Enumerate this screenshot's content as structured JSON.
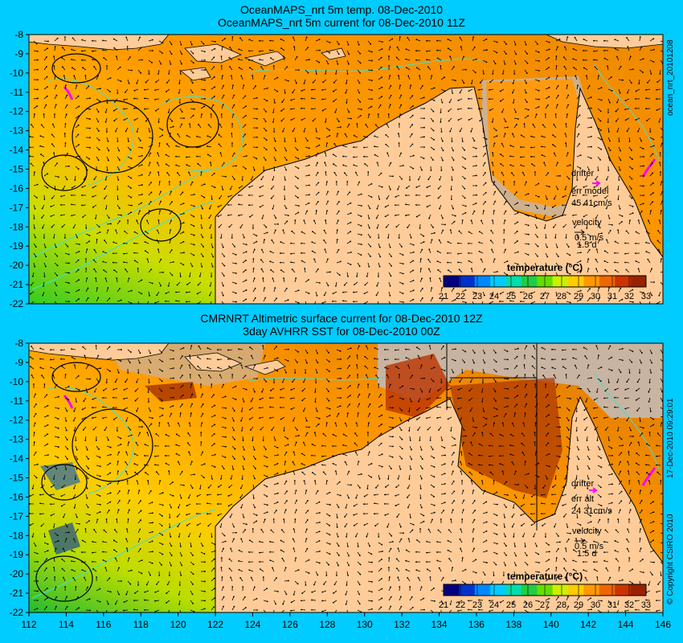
{
  "top_panel": {
    "title_line1": "OceanMAPS_nrt 5m temp. 08-Dec-2010",
    "title_line2": "OceanMAPS_nrt 5m current for 08-Dec-2010 11Z",
    "side_label": "ocean_nrt_20101208",
    "legend": {
      "drifter": "drifter",
      "err": "err model",
      "err_values": "45 41cm/s",
      "velocity": "velocity",
      "speed": "0.5 m/s",
      "duration": "1.5 d"
    },
    "colorbar_title": "temperature (°C)"
  },
  "bottom_panel": {
    "title_line1": "CMRNRT Altimetric surface current for 08-Dec-2010 12Z",
    "title_line2": "3day AVHRR SST for 08-Dec-2010 00Z",
    "side_label": "17-Dec-2010 09:29:01",
    "copyright": "© Copyright CSIRO 2010",
    "legend": {
      "drifter": "drifter",
      "err": "err alt",
      "err_values": "24 31cm/s",
      "velocity": "velocity",
      "speed": "0.5 m/s",
      "duration": "1.5 d"
    },
    "colorbar_title": "temperature (°C)"
  },
  "colorbar_ticks": [
    "21",
    "22",
    "23",
    "24",
    "25",
    "26",
    "27",
    "28",
    "29",
    "30",
    "31",
    "32",
    "33"
  ],
  "colorbar_colors": [
    "#000080",
    "#0033cc",
    "#0088ff",
    "#00ccff",
    "#00ddaa",
    "#22cc44",
    "#66dd00",
    "#ccee00",
    "#ffcc00",
    "#ff9900",
    "#ee6600",
    "#cc3300",
    "#992200"
  ],
  "lat_ticks": [
    "-8",
    "-9",
    "-10",
    "-11",
    "-12",
    "-13",
    "-14",
    "-15",
    "-16",
    "-17",
    "-18",
    "-19",
    "-20",
    "-21",
    "-22"
  ],
  "lon_ticks": [
    "112",
    "114",
    "116",
    "118",
    "120",
    "122",
    "124",
    "126",
    "128",
    "130",
    "132",
    "134",
    "136",
    "138",
    "140",
    "142",
    "144",
    "146"
  ],
  "colors": {
    "background": "#00ccff",
    "land": "#ffcc99",
    "no_data": "#c8b4a0",
    "contour": "#40e0d0",
    "drifter": "#ff00ff"
  }
}
